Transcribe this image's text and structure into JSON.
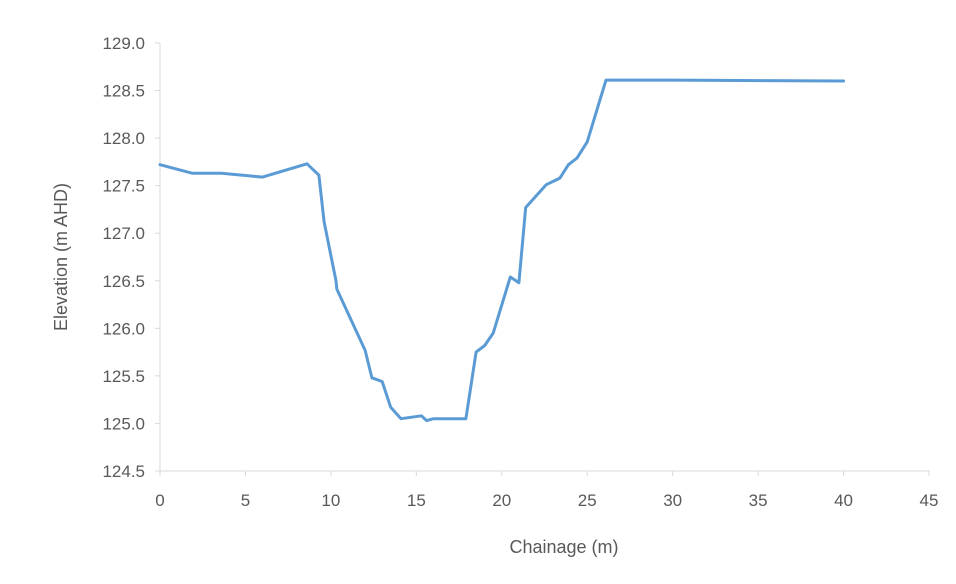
{
  "chart_data": {
    "type": "line",
    "xlabel": "Chainage (m)",
    "ylabel": "Elevation (m AHD)",
    "xlim": [
      0,
      45
    ],
    "ylim": [
      124.5,
      129.0
    ],
    "x_ticks": [
      "0",
      "5",
      "10",
      "15",
      "20",
      "25",
      "30",
      "35",
      "40",
      "45"
    ],
    "y_ticks": [
      "124.5",
      "125.0",
      "125.5",
      "126.0",
      "126.5",
      "127.0",
      "127.5",
      "128.0",
      "128.5",
      "129.0"
    ],
    "grid": false,
    "legend": "none",
    "series": [
      {
        "color": "#5b9bd5",
        "points": [
          [
            0.0,
            127.72
          ],
          [
            1.9,
            127.63
          ],
          [
            3.6,
            127.63
          ],
          [
            6.0,
            127.59
          ],
          [
            8.6,
            127.73
          ],
          [
            9.3,
            127.61
          ],
          [
            9.6,
            127.12
          ],
          [
            10.3,
            126.5
          ],
          [
            10.35,
            126.41
          ],
          [
            12.0,
            125.77
          ],
          [
            12.4,
            125.48
          ],
          [
            13.0,
            125.44
          ],
          [
            13.5,
            125.17
          ],
          [
            14.1,
            125.05
          ],
          [
            15.3,
            125.08
          ],
          [
            15.6,
            125.03
          ],
          [
            16.0,
            125.05
          ],
          [
            17.9,
            125.05
          ],
          [
            18.5,
            125.75
          ],
          [
            19.0,
            125.82
          ],
          [
            19.5,
            125.95
          ],
          [
            20.5,
            126.54
          ],
          [
            21.0,
            126.48
          ],
          [
            21.4,
            127.27
          ],
          [
            22.6,
            127.51
          ],
          [
            23.4,
            127.58
          ],
          [
            23.9,
            127.72
          ],
          [
            24.4,
            127.79
          ],
          [
            25.0,
            127.96
          ],
          [
            26.1,
            128.61
          ],
          [
            30.0,
            128.61
          ],
          [
            40.0,
            128.6
          ]
        ]
      }
    ]
  }
}
